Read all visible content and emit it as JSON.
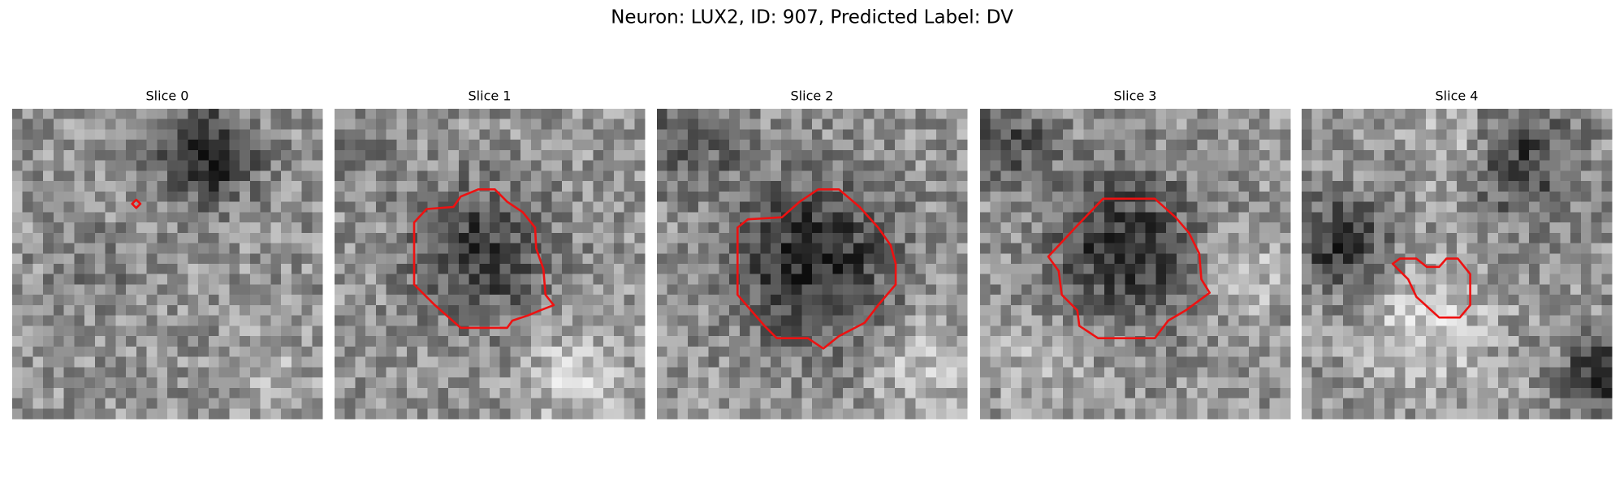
{
  "title": "Neuron: LUX2, ID: 907, Predicted Label: DV",
  "panels": [
    {
      "title": "Slice 0"
    },
    {
      "title": "Slice 1"
    },
    {
      "title": "Slice 2"
    },
    {
      "title": "Slice 3"
    },
    {
      "title": "Slice 4"
    }
  ]
}
